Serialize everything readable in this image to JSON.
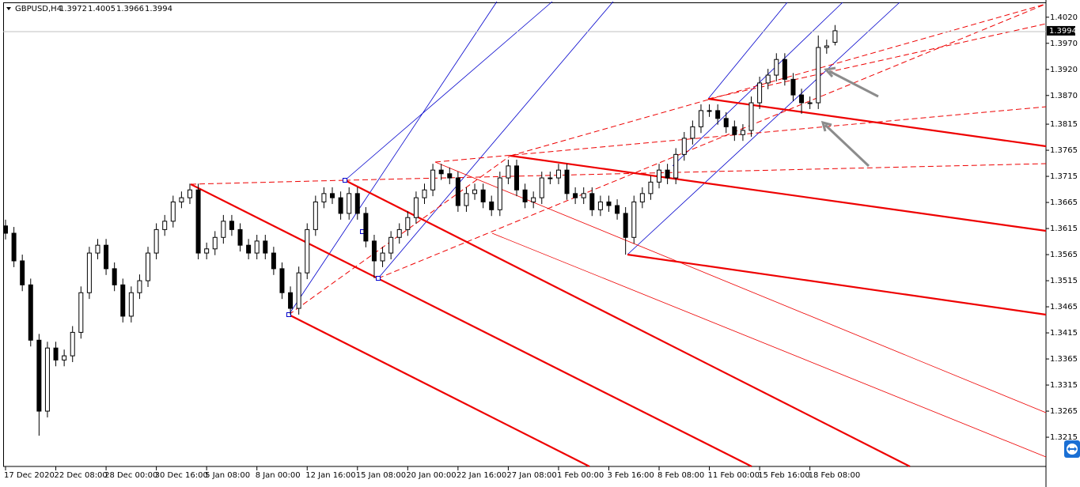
{
  "chart_data": {
    "type": "candlestick",
    "title": "GBPUSD,H4",
    "color": "#000000",
    "categories": [
      "17 Dec 2020",
      null,
      null,
      null,
      null,
      null,
      "22 Dec 08:00",
      null,
      null,
      null,
      null,
      null,
      "28 Dec 00:00",
      null,
      null,
      null,
      null,
      null,
      "30 Dec 16:00",
      null,
      null,
      null,
      null,
      null,
      "5 Jan 08:00",
      null,
      null,
      null,
      null,
      null,
      "8 Jan 00:00",
      null,
      null,
      null,
      null,
      null,
      "12 Jan 16:00",
      null,
      null,
      null,
      null,
      null,
      "15 Jan 08:00",
      null,
      null,
      null,
      null,
      null,
      "20 Jan 00:00",
      null,
      null,
      null,
      null,
      null,
      "22 Jan 16:00",
      null,
      null,
      null,
      null,
      null,
      "27 Jan 08:00",
      null,
      null,
      null,
      null,
      null,
      "1 Feb 00:00",
      null,
      null,
      null,
      null,
      null,
      "3 Feb 16:00",
      null,
      null,
      null,
      null,
      null,
      "8 Feb 08:00",
      null,
      null,
      null,
      null,
      null,
      "11 Feb 00:00",
      null,
      null,
      null,
      null,
      null,
      "15 Feb 16:00",
      null,
      null,
      null,
      null,
      null,
      "18 Feb 08:00",
      null,
      null,
      null
    ],
    "open": [
      1.362,
      1.3606,
      1.3553,
      1.3507,
      1.3401,
      1.3265,
      1.3386,
      1.3363,
      1.3371,
      1.3416,
      1.3492,
      1.3568,
      1.3583,
      1.3538,
      1.3507,
      1.3447,
      1.3492,
      1.3515,
      1.3568,
      1.3613,
      1.3629,
      1.3666,
      1.3674,
      1.3689,
      1.3568,
      1.3576,
      1.3598,
      1.3629,
      1.3613,
      1.3583,
      1.3568,
      1.3591,
      1.3568,
      1.3538,
      1.3492,
      1.3462,
      1.353,
      1.3613,
      1.3666,
      1.3682,
      1.3674,
      1.3644,
      1.3682,
      1.3644,
      1.3591,
      1.3553,
      1.3568,
      1.3598,
      1.3613,
      1.3636,
      1.3674,
      1.3689,
      1.3727,
      1.372,
      1.3712,
      1.3659,
      1.3682,
      1.3689,
      1.3666,
      1.3651,
      1.3712,
      1.3735,
      1.3689,
      1.3666,
      1.3674,
      1.3712,
      1.3712,
      1.3727,
      1.3682,
      1.3674,
      1.3682,
      1.3651,
      1.3666,
      1.3659,
      1.3644,
      1.3598,
      1.3666,
      1.3682,
      1.3704,
      1.3727,
      1.3712,
      1.3757,
      1.3788,
      1.381,
      1.3841,
      1.3841,
      1.3826,
      1.381,
      1.3795,
      1.3803,
      1.3856,
      1.3894,
      1.3909,
      1.3939,
      1.3901,
      1.3871,
      1.3856,
      1.3856,
      1.3962,
      1.3972
    ],
    "high": [
      1.3632,
      1.3618,
      1.3565,
      1.3519,
      1.3413,
      1.3398,
      1.3398,
      1.3383,
      1.3428,
      1.3504,
      1.358,
      1.3595,
      1.3595,
      1.355,
      1.3519,
      1.3504,
      1.3527,
      1.358,
      1.3625,
      1.3641,
      1.3678,
      1.3686,
      1.3701,
      1.3701,
      1.3588,
      1.361,
      1.3641,
      1.3641,
      1.3625,
      1.3595,
      1.3603,
      1.3603,
      1.358,
      1.355,
      1.3504,
      1.3542,
      1.3625,
      1.3678,
      1.3694,
      1.3694,
      1.3686,
      1.3694,
      1.3694,
      1.3656,
      1.3603,
      1.358,
      1.361,
      1.3625,
      1.3648,
      1.3686,
      1.3701,
      1.3739,
      1.3739,
      1.3732,
      1.3724,
      1.3694,
      1.3701,
      1.3701,
      1.3678,
      1.3724,
      1.3747,
      1.3747,
      1.3701,
      1.3686,
      1.3724,
      1.3724,
      1.3739,
      1.3739,
      1.3694,
      1.3694,
      1.3694,
      1.3678,
      1.3678,
      1.3671,
      1.3656,
      1.3678,
      1.3694,
      1.3716,
      1.3739,
      1.3739,
      1.3769,
      1.38,
      1.3822,
      1.3853,
      1.3853,
      1.3853,
      1.3838,
      1.3822,
      1.3815,
      1.3868,
      1.3906,
      1.3921,
      1.3951,
      1.3951,
      1.3913,
      1.3883,
      1.3868,
      1.3985,
      1.3977,
      1.4005
    ],
    "low": [
      1.3594,
      1.3541,
      1.3495,
      1.3389,
      1.3218,
      1.3253,
      1.3351,
      1.3351,
      1.3359,
      1.3404,
      1.348,
      1.3556,
      1.3526,
      1.3495,
      1.3435,
      1.3435,
      1.348,
      1.3503,
      1.3556,
      1.3601,
      1.3617,
      1.3654,
      1.3662,
      1.3556,
      1.3556,
      1.3564,
      1.3586,
      1.3601,
      1.3571,
      1.3556,
      1.3556,
      1.3556,
      1.3526,
      1.348,
      1.345,
      1.345,
      1.3518,
      1.3601,
      1.3654,
      1.3662,
      1.3632,
      1.3632,
      1.3632,
      1.3579,
      1.352,
      1.3541,
      1.3556,
      1.3586,
      1.3601,
      1.3624,
      1.3662,
      1.3677,
      1.3708,
      1.37,
      1.3647,
      1.3647,
      1.367,
      1.3654,
      1.3639,
      1.3639,
      1.37,
      1.3677,
      1.3654,
      1.3654,
      1.3662,
      1.37,
      1.37,
      1.367,
      1.3662,
      1.3662,
      1.3639,
      1.3639,
      1.3647,
      1.3632,
      1.3565,
      1.3586,
      1.3654,
      1.367,
      1.3692,
      1.37,
      1.37,
      1.3745,
      1.3776,
      1.3798,
      1.3829,
      1.3814,
      1.3798,
      1.3783,
      1.3783,
      1.3791,
      1.3844,
      1.3882,
      1.3897,
      1.3889,
      1.3859,
      1.3835,
      1.3844,
      1.3844,
      1.395,
      1.3966
    ],
    "close": [
      1.3606,
      1.3553,
      1.3507,
      1.3401,
      1.3265,
      1.3386,
      1.3363,
      1.3371,
      1.3416,
      1.3492,
      1.3568,
      1.3583,
      1.3538,
      1.3507,
      1.3447,
      1.3492,
      1.3515,
      1.3568,
      1.3613,
      1.3629,
      1.3666,
      1.3674,
      1.3689,
      1.3568,
      1.3576,
      1.3598,
      1.3629,
      1.3613,
      1.3583,
      1.3568,
      1.3591,
      1.3568,
      1.3538,
      1.3492,
      1.3462,
      1.353,
      1.3613,
      1.3666,
      1.3682,
      1.3674,
      1.3644,
      1.3682,
      1.3644,
      1.3591,
      1.3553,
      1.3568,
      1.3598,
      1.3613,
      1.3636,
      1.3674,
      1.3689,
      1.3727,
      1.372,
      1.3712,
      1.3659,
      1.3682,
      1.3689,
      1.3666,
      1.3651,
      1.3712,
      1.3735,
      1.3689,
      1.3666,
      1.3674,
      1.3712,
      1.3712,
      1.3727,
      1.3682,
      1.3674,
      1.3682,
      1.3651,
      1.3666,
      1.3659,
      1.3644,
      1.3598,
      1.3666,
      1.3682,
      1.3704,
      1.3727,
      1.3712,
      1.3757,
      1.3788,
      1.381,
      1.3841,
      1.3841,
      1.3826,
      1.381,
      1.3795,
      1.3803,
      1.3856,
      1.3894,
      1.3909,
      1.3939,
      1.3901,
      1.3871,
      1.3856,
      1.3856,
      1.3962,
      1.3965,
      1.3994
    ],
    "ylim": [
      1.3159,
      1.4053
    ],
    "yticks": [
      {
        "value": 1.402,
        "label": "1.4020"
      },
      {
        "value": 1.397,
        "label": "1.3970"
      },
      {
        "value": 1.392,
        "label": "1.3920"
      },
      {
        "value": 1.387,
        "label": "1.3870"
      },
      1.3815,
      1.3765,
      1.3715,
      1.3665,
      1.3615,
      1.3565,
      1.3515,
      1.3465,
      1.3415,
      1.3365,
      1.3315,
      1.3265,
      1.3215
    ],
    "grid": false
  }
}
